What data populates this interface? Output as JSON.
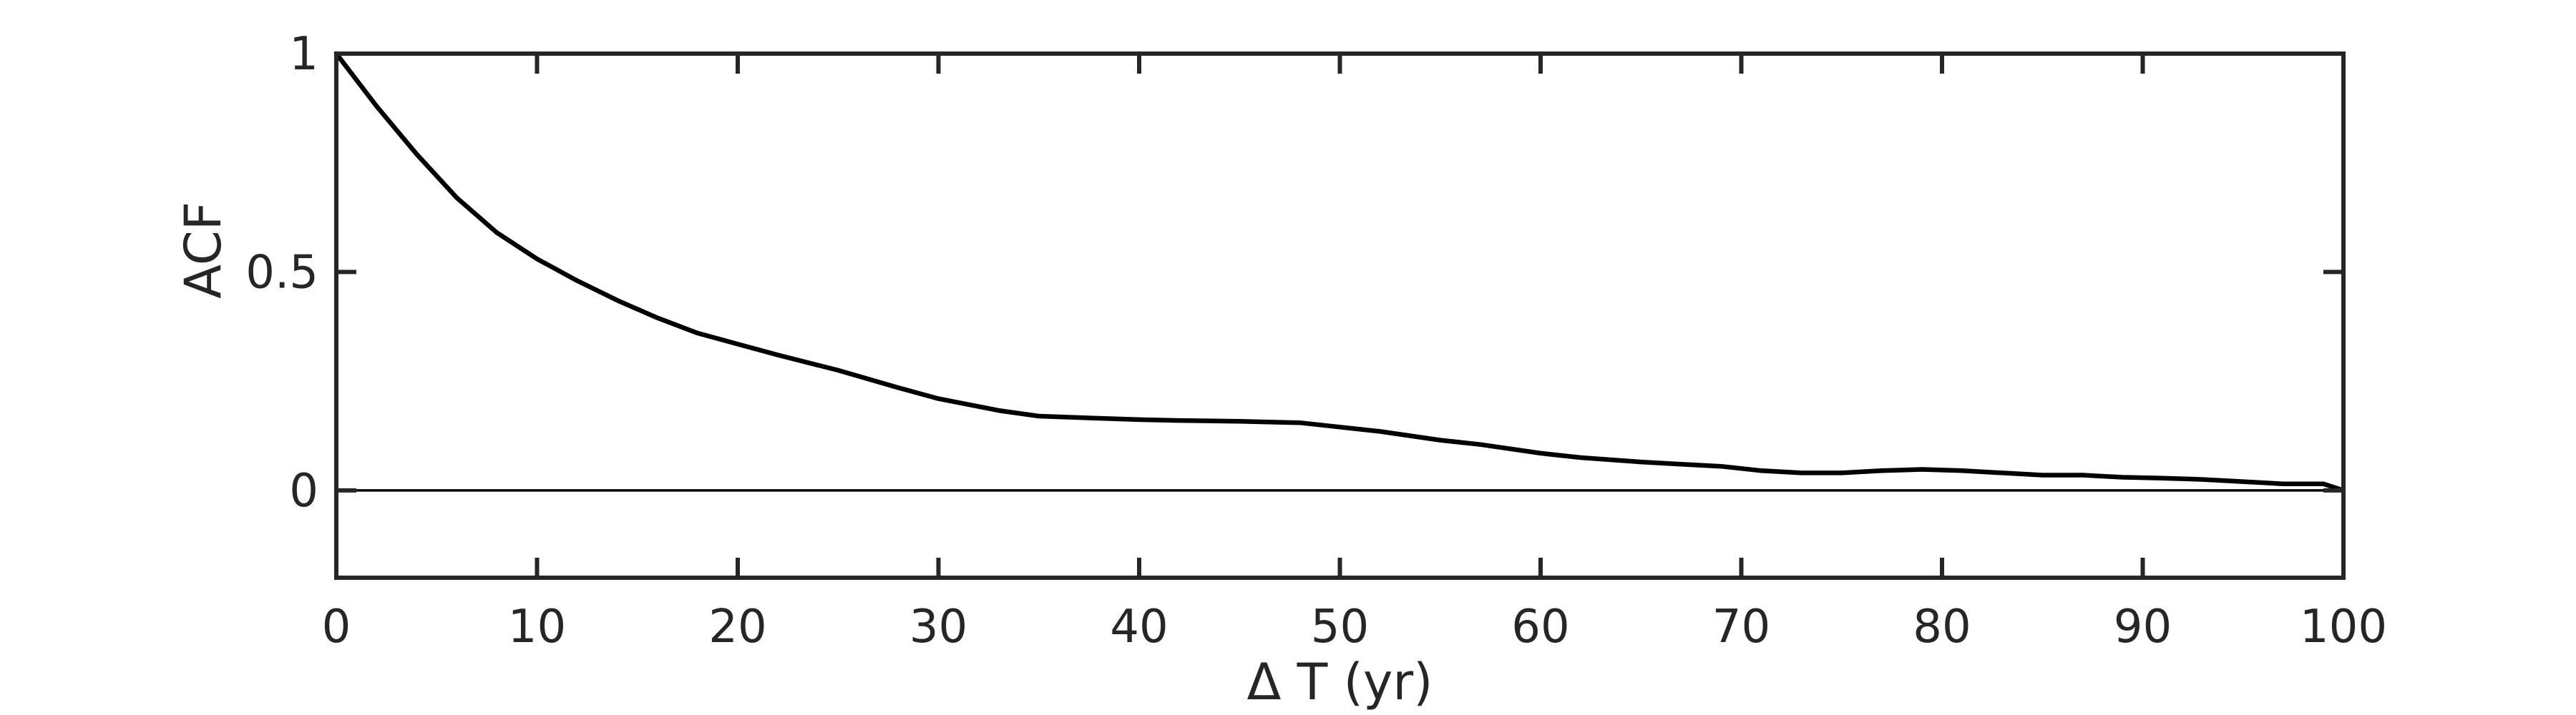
{
  "chart_data": {
    "type": "line",
    "title": "",
    "xlabel": "Δ T (yr)",
    "ylabel": "ACF",
    "xlim": [
      0,
      100
    ],
    "ylim": [
      -0.2,
      1
    ],
    "xticks": [
      0,
      10,
      20,
      30,
      40,
      50,
      60,
      70,
      80,
      90,
      100
    ],
    "xtick_labels": [
      "0",
      "10",
      "20",
      "30",
      "40",
      "50",
      "60",
      "70",
      "80",
      "90",
      "100"
    ],
    "yticks": [
      0,
      0.5,
      1
    ],
    "ytick_labels": [
      "0",
      "0.5",
      "1"
    ],
    "grid": false,
    "reference_line": {
      "y": 0
    },
    "colors": {
      "line": "#000000",
      "axes": "#262626",
      "reference": "#000000"
    },
    "series": [
      {
        "x": [
          0,
          2,
          4,
          6,
          8,
          10,
          12,
          14,
          16,
          18,
          20,
          22,
          25,
          28,
          30,
          33,
          35,
          38,
          40,
          42,
          45,
          48,
          50,
          52,
          55,
          57,
          60,
          62,
          65,
          67,
          69,
          71,
          73,
          75,
          77,
          79,
          81,
          83,
          85,
          87,
          89,
          91,
          93,
          95,
          97,
          99,
          100
        ],
        "y": [
          1.0,
          0.88,
          0.77,
          0.67,
          0.59,
          0.53,
          0.48,
          0.435,
          0.395,
          0.36,
          0.335,
          0.31,
          0.275,
          0.235,
          0.21,
          0.183,
          0.17,
          0.165,
          0.162,
          0.16,
          0.158,
          0.155,
          0.145,
          0.135,
          0.115,
          0.105,
          0.085,
          0.075,
          0.065,
          0.06,
          0.055,
          0.045,
          0.04,
          0.04,
          0.045,
          0.048,
          0.045,
          0.04,
          0.035,
          0.035,
          0.03,
          0.028,
          0.025,
          0.02,
          0.015,
          0.015,
          0.0
        ]
      }
    ]
  }
}
